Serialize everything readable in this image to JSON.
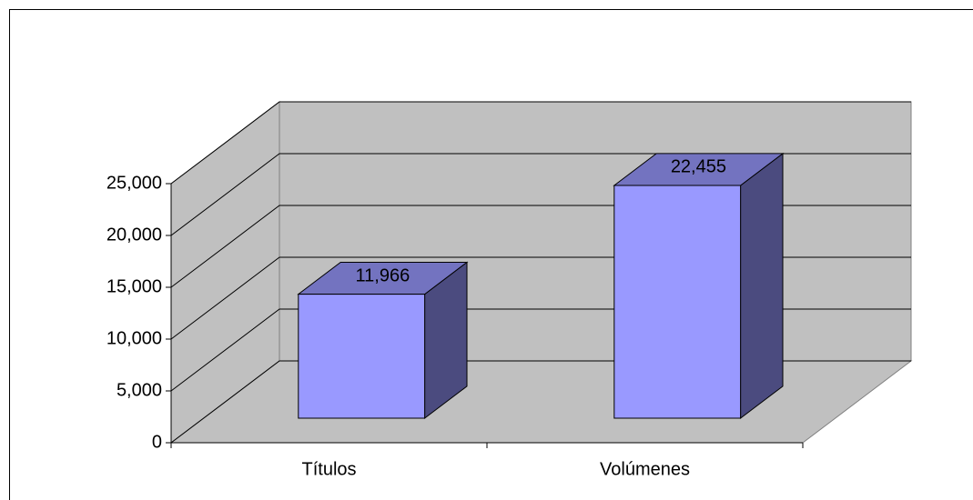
{
  "chart_data": {
    "type": "bar3d",
    "categories": [
      "Títulos",
      "Volúmenes"
    ],
    "values": [
      11966,
      22455
    ],
    "value_labels": [
      "11,966",
      "22,455"
    ],
    "color": "#9999ff",
    "ylim": [
      0,
      25000
    ],
    "yticks": [
      0,
      {
        "value": 5000,
        "label": "5,000"
      },
      {
        "value": 10000,
        "label": "10,000"
      },
      {
        "value": 15000,
        "label": "15,000"
      },
      {
        "value": 20000,
        "label": "20,000"
      },
      {
        "value": 25000,
        "label": "25,000"
      }
    ],
    "grid": true
  }
}
